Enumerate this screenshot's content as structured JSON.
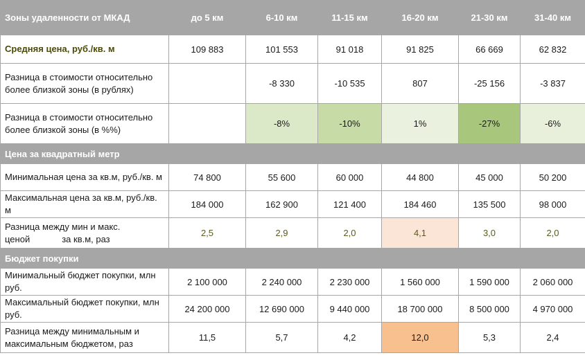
{
  "header": {
    "title": "Зоны удаленности от МКАД",
    "columns": [
      "до 5 км",
      "6-10 км",
      "11-15 км",
      "16-20 км",
      "21-30 км",
      "31-40 км"
    ]
  },
  "rows_top": [
    {
      "label": "Средняя цена, руб./кв. м",
      "values": [
        "109 883",
        "101 553",
        "91 018",
        "91 825",
        "66 669",
        "62 832"
      ]
    },
    {
      "label": "Разница в стоимости относительно более близкой зоны (в рублях)",
      "values": [
        "",
        "-8 330",
        "-10 535",
        "807",
        "-25 156",
        "-3 837"
      ]
    },
    {
      "label": "Разница в стоимости относительно более близкой зоны (в %%)",
      "values": [
        "",
        "-8%",
        "-10%",
        "1%",
        "-27%",
        "-6%"
      ],
      "cell_colors": [
        "#ffffff",
        "#dce9c8",
        "#c6dba6",
        "#eaf1de",
        "#a9c77c",
        "#e8f0dc"
      ]
    }
  ],
  "section1": {
    "title": "Цена за квадратный метр",
    "rows": [
      {
        "label": "Минимальная цена за кв.м, руб./кв. м",
        "values": [
          "74 800",
          "55 600",
          "60 000",
          "44 800",
          "45 000",
          "50 200"
        ]
      },
      {
        "label": "Максимальная цена за кв.м, руб./кв. м",
        "values": [
          "184 000",
          "162 900",
          "121 400",
          "184 460",
          "135 500",
          "98 000"
        ]
      }
    ],
    "ratio": {
      "label_part1": "Разница между мин и макс.",
      "label_part2": "ценой",
      "label_part3": "за кв.м, раз",
      "values": [
        "2,5",
        "2,9",
        "2,0",
        "4,1",
        "3,0",
        "2,0"
      ],
      "highlight_color": "#fbe5d6"
    }
  },
  "section2": {
    "title": "Бюджет покупки",
    "rows": [
      {
        "label": "Минимальный бюджет покупки, млн руб.",
        "values": [
          "2 100 000",
          "2 240 000",
          "2 230 000",
          "1 560 000",
          "1 590 000",
          "2 060 000"
        ]
      },
      {
        "label": "Максимальный бюджет покупки, млн руб.",
        "values": [
          "24 200 000",
          "12 690 000",
          "9 440 000",
          "18 700 000",
          "8 500 000",
          "4 970 000"
        ]
      },
      {
        "label": "Разница между минимальным и максимальным бюджетом, раз",
        "values": [
          "11,5",
          "5,7",
          "4,2",
          "12,0",
          "5,3",
          "2,4"
        ],
        "highlight_color": "#f8bf8f"
      }
    ]
  }
}
